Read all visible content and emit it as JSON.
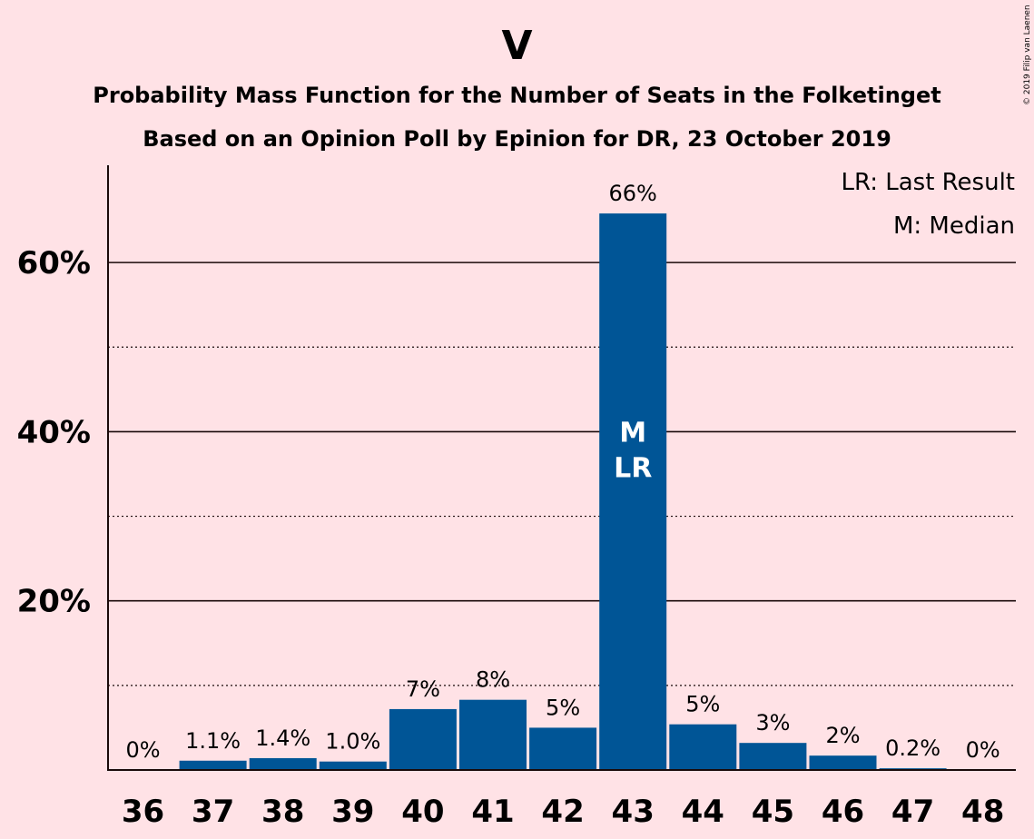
{
  "chart_data": {
    "type": "bar",
    "title": "V",
    "subtitle_lines": [
      "Probability Mass Function for the Number of Seats in the Folketinget",
      "Based on an Opinion Poll by Epinion for DR, 23 October 2019"
    ],
    "copyright": "© 2019 Filip van Laenen",
    "categories": [
      "36",
      "37",
      "38",
      "39",
      "40",
      "41",
      "42",
      "43",
      "44",
      "45",
      "46",
      "47",
      "48"
    ],
    "values": [
      0,
      1.1,
      1.4,
      1.0,
      7.2,
      8.3,
      5.0,
      65.8,
      5.4,
      3.2,
      1.7,
      0.2,
      0
    ],
    "value_labels": [
      "0%",
      "1.1%",
      "1.4%",
      "1.0%",
      "7%",
      "8%",
      "5%",
      "66%",
      "5%",
      "3%",
      "2%",
      "0.2%",
      "0%"
    ],
    "ylim": [
      0,
      71.5
    ],
    "yticks": [
      20,
      40,
      60
    ],
    "ytick_labels": [
      "20%",
      "40%",
      "60%"
    ],
    "minor_gridlines": [
      10,
      30,
      50
    ],
    "bar_color": "#005596",
    "background_color": "#FFE2E6",
    "median_index": 7,
    "last_result_index": 7,
    "median_marker": "M",
    "last_result_marker": "LR",
    "legend": {
      "placement": "top-right",
      "entries": [
        "LR: Last Result",
        "M: Median"
      ]
    }
  }
}
